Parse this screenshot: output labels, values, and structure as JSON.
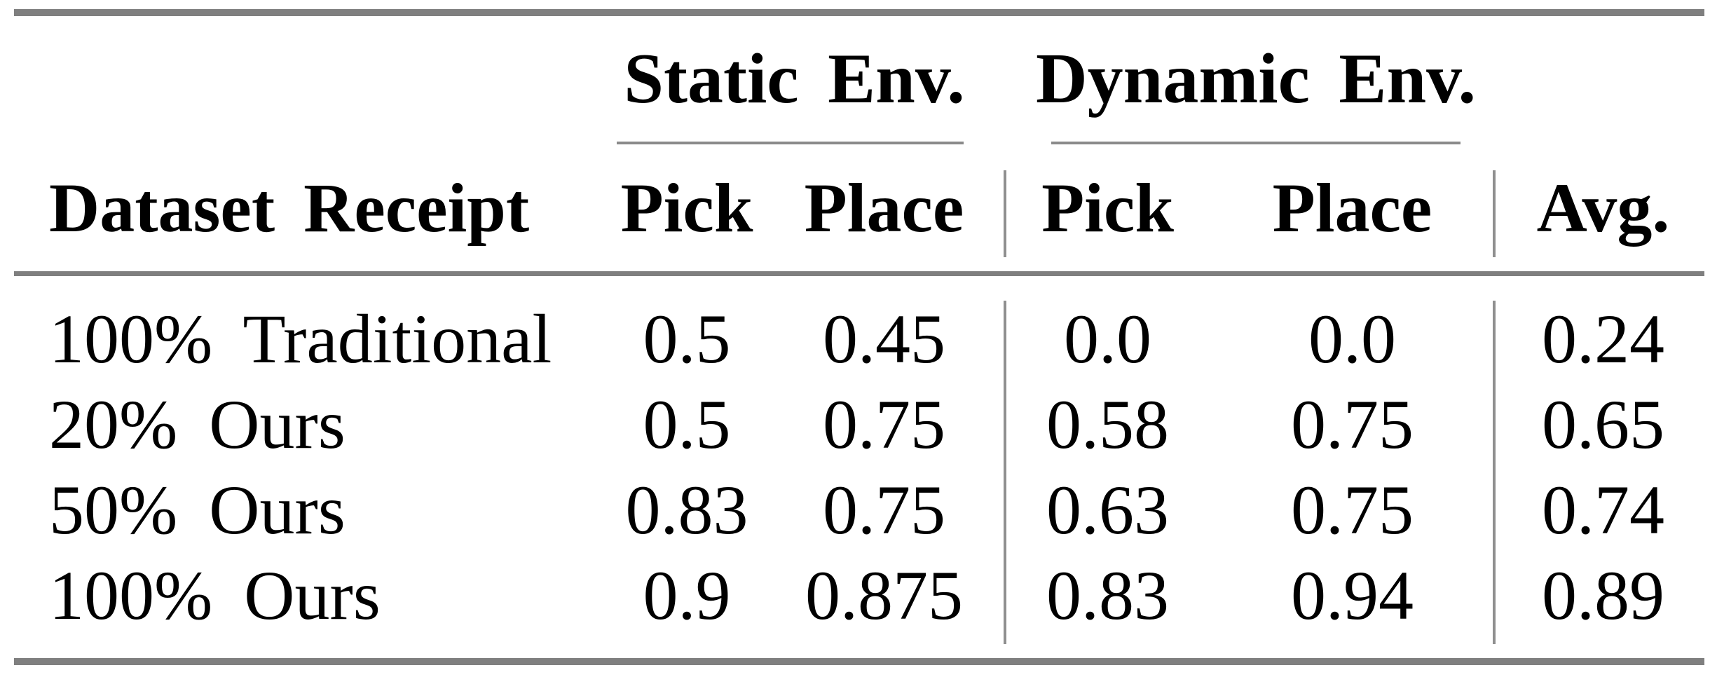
{
  "table": {
    "groups": [
      {
        "label": "Static Env."
      },
      {
        "label": "Dynamic Env."
      }
    ],
    "columns": [
      "Dataset Receipt",
      "Pick",
      "Place",
      "Pick",
      "Place",
      "Avg."
    ],
    "rows": [
      {
        "label": "100% Traditional",
        "values": [
          "0.5",
          "0.45",
          "0.0",
          "0.0",
          "0.24"
        ]
      },
      {
        "label": "20% Ours",
        "values": [
          "0.5",
          "0.75",
          "0.58",
          "0.75",
          "0.65"
        ]
      },
      {
        "label": "50% Ours",
        "values": [
          "0.83",
          "0.75",
          "0.63",
          "0.75",
          "0.74"
        ]
      },
      {
        "label": "100% Ours",
        "values": [
          "0.9",
          "0.875",
          "0.83",
          "0.94",
          "0.89"
        ]
      }
    ],
    "colors": {
      "rule_gray": "#7f7f7f",
      "text": "#000000",
      "background": "#ffffff"
    }
  },
  "chart_data": {
    "type": "table",
    "title": "",
    "column_groups": [
      {
        "label": "Static Env.",
        "columns": [
          "Pick",
          "Place"
        ]
      },
      {
        "label": "Dynamic Env.",
        "columns": [
          "Pick",
          "Place"
        ]
      }
    ],
    "row_header": "Dataset Receipt",
    "categories": [
      "100% Traditional",
      "20% Ours",
      "50% Ours",
      "100% Ours"
    ],
    "series": [
      {
        "name": "Static Env. Pick",
        "values": [
          0.5,
          0.5,
          0.83,
          0.9
        ]
      },
      {
        "name": "Static Env. Place",
        "values": [
          0.45,
          0.75,
          0.75,
          0.875
        ]
      },
      {
        "name": "Dynamic Env. Pick",
        "values": [
          0.0,
          0.58,
          0.63,
          0.83
        ]
      },
      {
        "name": "Dynamic Env. Place",
        "values": [
          0.0,
          0.75,
          0.75,
          0.94
        ]
      },
      {
        "name": "Avg.",
        "values": [
          0.24,
          0.65,
          0.74,
          0.89
        ]
      }
    ]
  }
}
